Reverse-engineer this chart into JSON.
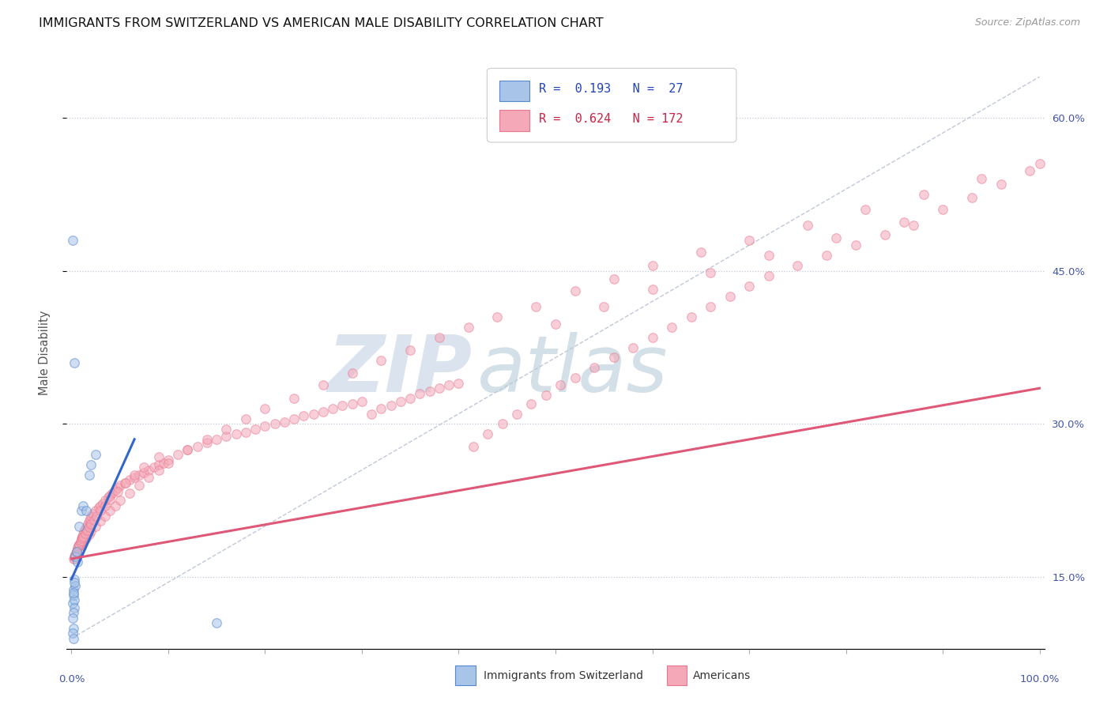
{
  "title": "IMMIGRANTS FROM SWITZERLAND VS AMERICAN MALE DISABILITY CORRELATION CHART",
  "source": "Source: ZipAtlas.com",
  "ylabel": "Male Disability",
  "ytick_labels": [
    "15.0%",
    "30.0%",
    "45.0%",
    "60.0%"
  ],
  "ytick_values": [
    0.15,
    0.3,
    0.45,
    0.6
  ],
  "blue_color": "#a8c4e8",
  "pink_color": "#f4a8b8",
  "blue_edge_color": "#5588cc",
  "pink_edge_color": "#e87890",
  "blue_line_color": "#3366cc",
  "pink_line_color": "#e05878",
  "diag_line_color": "#c0c8d8",
  "watermark_zip_color": "#ccd8e8",
  "watermark_atlas_color": "#b8ccd8",
  "background_color": "#ffffff",
  "scatter_size": 70,
  "scatter_alpha": 0.55,
  "xlim": [
    -0.005,
    1.005
  ],
  "ylim": [
    0.08,
    0.66
  ],
  "blue_line_x0": 0.0,
  "blue_line_x1": 0.065,
  "blue_line_y0": 0.148,
  "blue_line_y1": 0.285,
  "pink_line_x0": 0.0,
  "pink_line_x1": 1.0,
  "pink_line_y0": 0.168,
  "pink_line_y1": 0.335,
  "diag_line_x0": 0.0,
  "diag_line_x1": 1.0,
  "diag_line_y0": 0.09,
  "diag_line_y1": 0.64,
  "blue_x": [
    0.003,
    0.004,
    0.005,
    0.006,
    0.008,
    0.01,
    0.012,
    0.015,
    0.018,
    0.02,
    0.025,
    0.001,
    0.002,
    0.002,
    0.003,
    0.003,
    0.004,
    0.002,
    0.001,
    0.002,
    0.003,
    0.001,
    0.15,
    0.003,
    0.002,
    0.001,
    0.002
  ],
  "blue_y": [
    0.148,
    0.17,
    0.175,
    0.165,
    0.2,
    0.215,
    0.22,
    0.215,
    0.25,
    0.26,
    0.27,
    0.125,
    0.138,
    0.132,
    0.128,
    0.12,
    0.142,
    0.115,
    0.11,
    0.135,
    0.145,
    0.48,
    0.105,
    0.36,
    0.1,
    0.095,
    0.09
  ],
  "pink_x": [
    0.003,
    0.004,
    0.005,
    0.006,
    0.007,
    0.008,
    0.009,
    0.01,
    0.011,
    0.012,
    0.013,
    0.014,
    0.015,
    0.016,
    0.017,
    0.018,
    0.019,
    0.02,
    0.022,
    0.025,
    0.028,
    0.03,
    0.032,
    0.035,
    0.038,
    0.04,
    0.042,
    0.045,
    0.048,
    0.05,
    0.055,
    0.06,
    0.065,
    0.07,
    0.075,
    0.08,
    0.085,
    0.09,
    0.095,
    0.1,
    0.11,
    0.12,
    0.13,
    0.14,
    0.15,
    0.16,
    0.17,
    0.18,
    0.19,
    0.2,
    0.21,
    0.22,
    0.23,
    0.24,
    0.25,
    0.26,
    0.27,
    0.28,
    0.29,
    0.3,
    0.31,
    0.32,
    0.33,
    0.34,
    0.35,
    0.36,
    0.37,
    0.38,
    0.39,
    0.4,
    0.415,
    0.43,
    0.445,
    0.46,
    0.475,
    0.49,
    0.505,
    0.52,
    0.54,
    0.56,
    0.58,
    0.6,
    0.62,
    0.64,
    0.66,
    0.68,
    0.7,
    0.72,
    0.75,
    0.78,
    0.81,
    0.84,
    0.87,
    0.9,
    0.93,
    0.96,
    0.99,
    0.005,
    0.008,
    0.01,
    0.012,
    0.015,
    0.018,
    0.02,
    0.025,
    0.03,
    0.035,
    0.04,
    0.045,
    0.05,
    0.06,
    0.07,
    0.08,
    0.09,
    0.1,
    0.12,
    0.14,
    0.16,
    0.18,
    0.2,
    0.23,
    0.26,
    0.29,
    0.32,
    0.35,
    0.38,
    0.41,
    0.44,
    0.48,
    0.52,
    0.56,
    0.6,
    0.65,
    0.7,
    0.76,
    0.82,
    0.88,
    0.94,
    1.0,
    0.002,
    0.003,
    0.004,
    0.005,
    0.006,
    0.007,
    0.008,
    0.009,
    0.01,
    0.011,
    0.012,
    0.014,
    0.016,
    0.018,
    0.02,
    0.023,
    0.026,
    0.03,
    0.035,
    0.04,
    0.048,
    0.056,
    0.065,
    0.075,
    0.09,
    0.5,
    0.55,
    0.6,
    0.66,
    0.72,
    0.79,
    0.86
  ],
  "pink_y": [
    0.168,
    0.172,
    0.175,
    0.178,
    0.18,
    0.182,
    0.185,
    0.188,
    0.19,
    0.192,
    0.195,
    0.197,
    0.198,
    0.2,
    0.202,
    0.205,
    0.207,
    0.21,
    0.212,
    0.215,
    0.218,
    0.22,
    0.222,
    0.225,
    0.228,
    0.23,
    0.232,
    0.235,
    0.238,
    0.24,
    0.242,
    0.245,
    0.248,
    0.25,
    0.252,
    0.255,
    0.258,
    0.26,
    0.262,
    0.265,
    0.27,
    0.275,
    0.278,
    0.282,
    0.285,
    0.288,
    0.29,
    0.292,
    0.295,
    0.298,
    0.3,
    0.302,
    0.305,
    0.308,
    0.31,
    0.312,
    0.315,
    0.318,
    0.32,
    0.322,
    0.31,
    0.315,
    0.318,
    0.322,
    0.325,
    0.33,
    0.332,
    0.335,
    0.338,
    0.34,
    0.278,
    0.29,
    0.3,
    0.31,
    0.32,
    0.328,
    0.338,
    0.345,
    0.355,
    0.365,
    0.375,
    0.385,
    0.395,
    0.405,
    0.415,
    0.425,
    0.435,
    0.445,
    0.455,
    0.465,
    0.475,
    0.485,
    0.495,
    0.51,
    0.522,
    0.535,
    0.548,
    0.175,
    0.18,
    0.182,
    0.185,
    0.188,
    0.192,
    0.195,
    0.2,
    0.205,
    0.21,
    0.215,
    0.22,
    0.225,
    0.232,
    0.24,
    0.248,
    0.255,
    0.262,
    0.275,
    0.285,
    0.295,
    0.305,
    0.315,
    0.325,
    0.338,
    0.35,
    0.362,
    0.372,
    0.385,
    0.395,
    0.405,
    0.415,
    0.43,
    0.442,
    0.455,
    0.468,
    0.48,
    0.495,
    0.51,
    0.525,
    0.54,
    0.555,
    0.168,
    0.17,
    0.172,
    0.175,
    0.178,
    0.18,
    0.182,
    0.184,
    0.186,
    0.188,
    0.19,
    0.193,
    0.196,
    0.199,
    0.202,
    0.206,
    0.21,
    0.215,
    0.22,
    0.226,
    0.234,
    0.242,
    0.25,
    0.258,
    0.268,
    0.398,
    0.415,
    0.432,
    0.448,
    0.465,
    0.482,
    0.498
  ]
}
